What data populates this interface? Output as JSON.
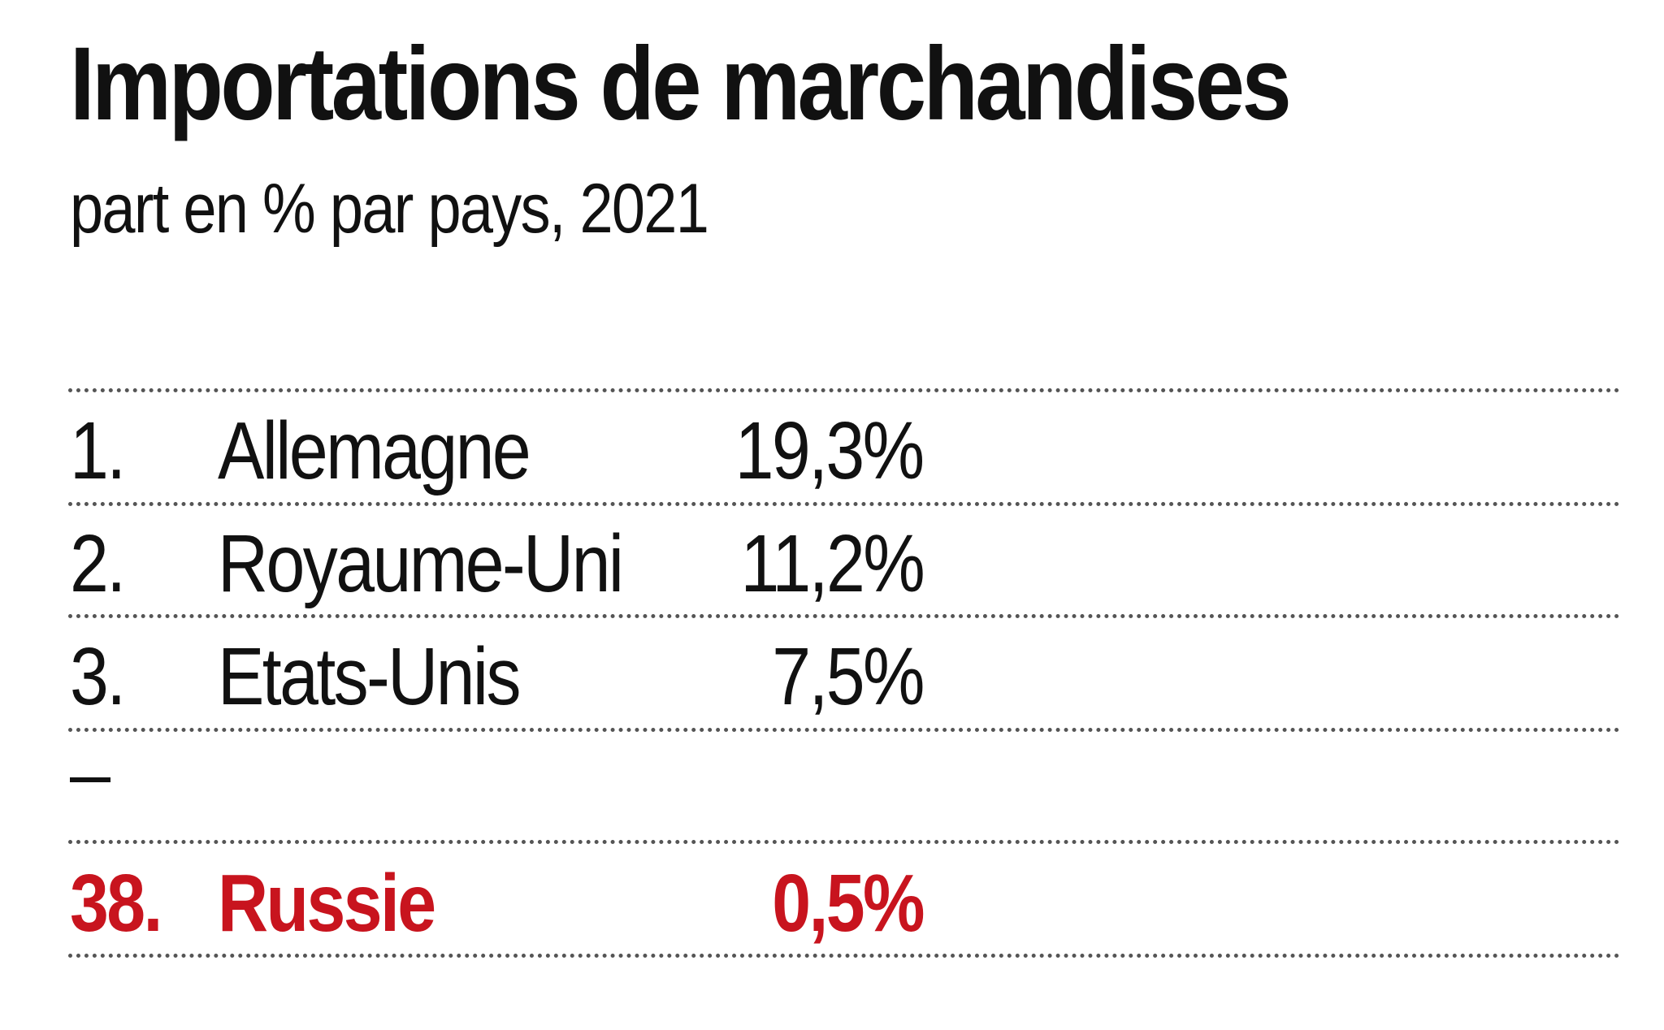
{
  "chart_data": {
    "type": "table",
    "title": "Importations de marchandises",
    "subtitle": "part en % par pays, 2021",
    "rows": [
      {
        "rank": "1.",
        "country": "Allemagne",
        "value_label": "19,3%",
        "value": 19.3
      },
      {
        "rank": "2.",
        "country": "Royaume-Uni",
        "value_label": "11,2%",
        "value": 11.2
      },
      {
        "rank": "3.",
        "country": "Etats-Unis",
        "value_label": "7,5%",
        "value": 7.5
      }
    ],
    "separator": "–",
    "highlight_row": {
      "rank": "38.",
      "country": "Russie",
      "value_label": "0,5%",
      "value": 0.5
    },
    "colors": {
      "text": "#111111",
      "highlight": "#c8141e",
      "dots": "#555555",
      "background": "#ffffff"
    }
  }
}
